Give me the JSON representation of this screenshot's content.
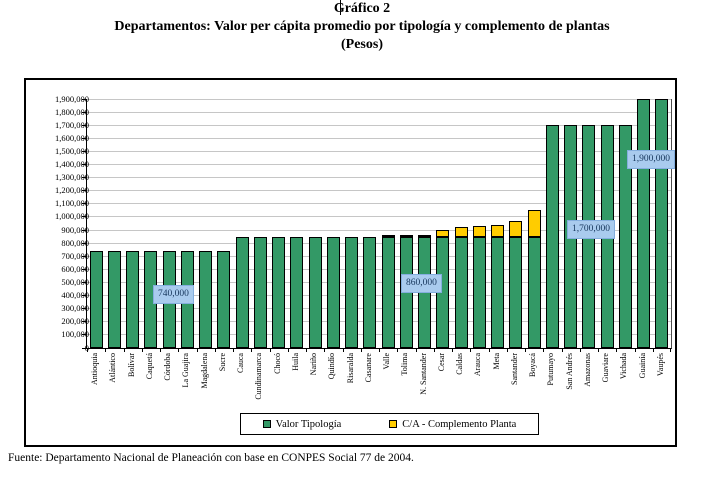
{
  "title": {
    "line1": "Gráfico 2",
    "line2": "Departamentos: Valor per cápita promedio por tipología y complemento de plantas",
    "line3": "(Pesos)"
  },
  "footer": "Fuente: Departamento Nacional de Planeación con base en CONPES Social 77 de 2004.",
  "colors": {
    "valor_green": "#339966",
    "complemento_yellow": "#ffcc00",
    "callout_bg": "#a9cbee",
    "callout_text": "#16365c",
    "gridline": "#c6c6c6"
  },
  "chart_data": {
    "type": "bar",
    "stacked": true,
    "title": "Departamentos: Valor per cápita promedio por tipología y complemento de plantas (Pesos)",
    "xlabel": "",
    "ylabel": "",
    "ylim": [
      0,
      1900000
    ],
    "ytick_step": 100000,
    "ytick_labels": [
      "0",
      "100,000",
      "200,000",
      "300,000",
      "400,000",
      "500,000",
      "600,000",
      "700,000",
      "800,000",
      "900,000",
      "1,000,000",
      "1,100,000",
      "1,200,000",
      "1,300,000",
      "1,400,000",
      "1,500,000",
      "1,600,000",
      "1,700,000",
      "1,800,000",
      "1,900,000"
    ],
    "grid": true,
    "legend_position": "bottom",
    "categories": [
      "Antioquia",
      "Atlántico",
      "Bolívar",
      "Caquetá",
      "Córdoba",
      "La Guajira",
      "Magdalena",
      "Sucre",
      "Cauca",
      "Cundinamarca",
      "Chocó",
      "Huila",
      "Nariño",
      "Quindío",
      "Risaralda",
      "Casanare",
      "Valle",
      "Tolima",
      "N. Santander",
      "Cesar",
      "Caldas",
      "Arauca",
      "Meta",
      "Santander",
      "Boyacá",
      "Putumayo",
      "San Andrés",
      "Amazonas",
      "Guaviare",
      "Vichada",
      "Guainía",
      "Vaupés"
    ],
    "series": [
      {
        "name": "Valor Tipología",
        "color": "#339966",
        "values": [
          740000,
          740000,
          740000,
          740000,
          740000,
          740000,
          740000,
          740000,
          850000,
          850000,
          850000,
          850000,
          850000,
          850000,
          850000,
          850000,
          850000,
          850000,
          850000,
          850000,
          850000,
          850000,
          850000,
          850000,
          850000,
          1700000,
          1700000,
          1700000,
          1700000,
          1700000,
          1900000,
          1900000
        ]
      },
      {
        "name": "C/A - Complemento Planta",
        "color": "#ffcc00",
        "values": [
          0,
          0,
          0,
          0,
          0,
          0,
          0,
          0,
          0,
          0,
          0,
          0,
          0,
          0,
          0,
          0,
          10000,
          10000,
          10000,
          50000,
          70000,
          80000,
          90000,
          120000,
          200000,
          0,
          0,
          0,
          0,
          0,
          0,
          0
        ]
      }
    ],
    "annotations": [
      {
        "text": "740,000",
        "category": "Córdoba",
        "value": 740000
      },
      {
        "text": "860,000",
        "category": "Tolima",
        "value": 860000
      },
      {
        "text": "1,700,000",
        "category": "San Andrés",
        "value": 1700000
      },
      {
        "text": "1,900,000",
        "category": "Guainía",
        "value": 1900000
      }
    ]
  },
  "legend": {
    "items": [
      {
        "label": "Valor Tipología",
        "color": "#339966"
      },
      {
        "label": "C/A - Complemento Planta",
        "color": "#ffcc00"
      }
    ]
  }
}
